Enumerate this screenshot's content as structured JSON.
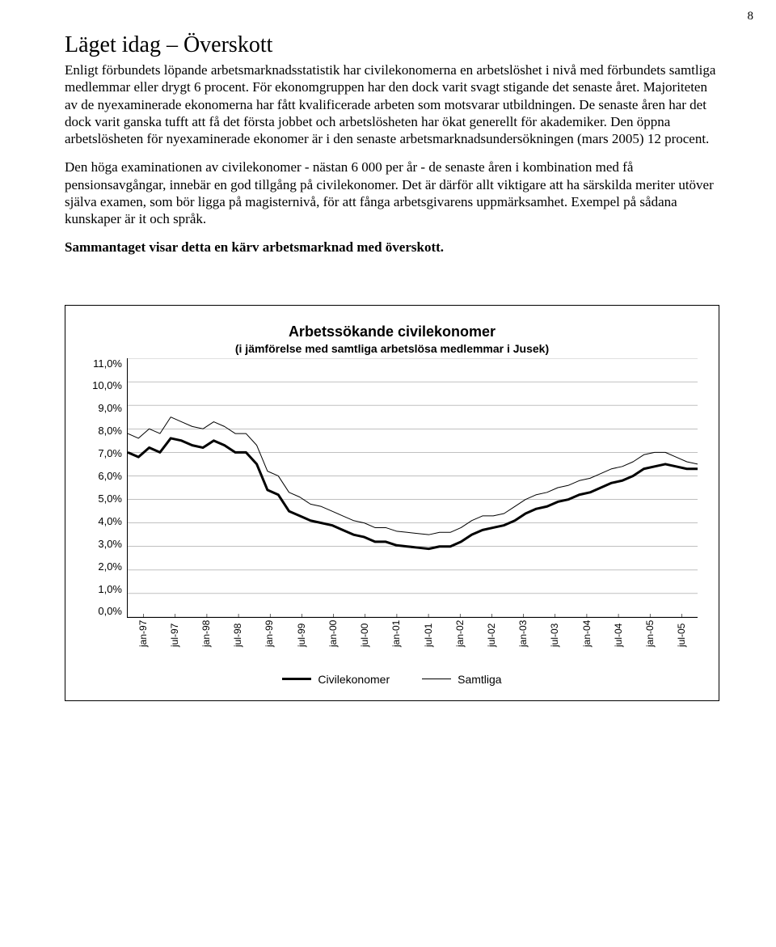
{
  "page_number": "8",
  "heading": "Läget idag – Överskott",
  "paragraphs": [
    "Enligt förbundets löpande arbetsmarknadsstatistik har civilekonomerna en arbetslöshet i nivå med förbundets samtliga medlemmar eller drygt 6 procent. För ekonomgruppen har den dock varit svagt stigande det senaste året. Majoriteten av de nyexaminerade ekonomerna har fått kvalificerade arbeten som motsvarar utbildningen. De senaste åren har det dock varit ganska tufft att få det första jobbet och arbetslösheten har ökat generellt för akademiker. Den öppna arbetslösheten för nyexaminerade ekonomer är i den senaste arbetsmarknadsundersökningen (mars 2005) 12 procent.",
    "Den höga examinationen av civilekonomer - nästan 6 000 per år - de senaste åren i kombination med få pensionsavgångar, innebär en god tillgång på civilekonomer. Det är därför allt viktigare att ha särskilda meriter utöver själva examen, som bör ligga på magisternivå, för att fånga arbetsgivarens uppmärksamhet. Exempel på sådana kunskaper är it och språk."
  ],
  "bold_line": "Sammantaget visar detta en kärv arbetsmarknad med överskott.",
  "chart": {
    "type": "line",
    "title": "Arbetssökande civilekonomer",
    "subtitle": "(i jämförelse med samtliga arbetslösa medlemmar i Jusek)",
    "yticks": [
      "11,0%",
      "10,0%",
      "9,0%",
      "8,0%",
      "7,0%",
      "6,0%",
      "5,0%",
      "4,0%",
      "3,0%",
      "2,0%",
      "1,0%",
      "0,0%"
    ],
    "ylim": [
      0,
      11
    ],
    "xticks": [
      "jan-97",
      "jul-97",
      "jan-98",
      "jul-98",
      "jan-99",
      "jul-99",
      "jan-00",
      "jul-00",
      "jan-01",
      "jul-01",
      "jan-02",
      "jul-02",
      "jan-03",
      "jul-03",
      "jan-04",
      "jul-04",
      "jan-05",
      "jul-05"
    ],
    "grid_color": "#808080",
    "background_color": "#ffffff",
    "border_color": "#000000",
    "series": [
      {
        "name": "Civilekonomer",
        "color": "#000000",
        "stroke_width": 3.0,
        "values": [
          7.0,
          6.8,
          7.2,
          7.0,
          7.6,
          7.5,
          7.3,
          7.2,
          7.5,
          7.3,
          7.0,
          7.0,
          6.5,
          5.4,
          5.2,
          4.5,
          4.3,
          4.1,
          4.0,
          3.9,
          3.7,
          3.5,
          3.4,
          3.2,
          3.2,
          3.05,
          3.0,
          2.95,
          2.9,
          3.0,
          3.0,
          3.2,
          3.5,
          3.7,
          3.8,
          3.9,
          4.1,
          4.4,
          4.6,
          4.7,
          4.9,
          5.0,
          5.2,
          5.3,
          5.5,
          5.7,
          5.8,
          6.0,
          6.3,
          6.4,
          6.5,
          6.4,
          6.3,
          6.3
        ]
      },
      {
        "name": "Samtliga",
        "color": "#000000",
        "stroke_width": 1.0,
        "values": [
          7.8,
          7.6,
          8.0,
          7.8,
          8.5,
          8.3,
          8.1,
          8.0,
          8.3,
          8.1,
          7.8,
          7.8,
          7.3,
          6.2,
          6.0,
          5.3,
          5.1,
          4.8,
          4.7,
          4.5,
          4.3,
          4.1,
          4.0,
          3.8,
          3.8,
          3.65,
          3.6,
          3.55,
          3.5,
          3.6,
          3.6,
          3.8,
          4.1,
          4.3,
          4.3,
          4.4,
          4.7,
          5.0,
          5.2,
          5.3,
          5.5,
          5.6,
          5.8,
          5.9,
          6.1,
          6.3,
          6.4,
          6.6,
          6.9,
          7.0,
          7.0,
          6.8,
          6.6,
          6.5
        ]
      }
    ],
    "legend": [
      {
        "label": "Civilekonomer",
        "stroke_width": 3.0
      },
      {
        "label": "Samtliga",
        "stroke_width": 1.0
      }
    ]
  }
}
